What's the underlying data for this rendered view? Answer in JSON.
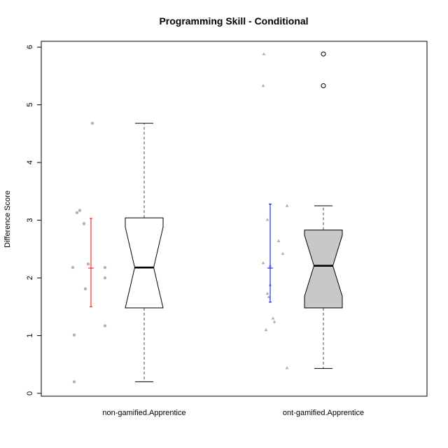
{
  "chart_data": {
    "type": "box",
    "title": "Programming Skill - Conditional",
    "xlabel": "",
    "ylabel": "Difference Score",
    "ylim": [
      -0.05,
      6.1
    ],
    "yticks": [
      0,
      1,
      2,
      3,
      4,
      5,
      6
    ],
    "categories": [
      "non-gamified.Apprentice",
      "ont-gamified.Apprentice"
    ],
    "boxes": [
      {
        "name": "non-gamified.Apprentice",
        "fill": "#ffffff",
        "whisker_low": 0.2,
        "q1": 1.48,
        "median": 2.18,
        "q3": 3.04,
        "whisker_high": 4.68,
        "notch_low": 1.48,
        "notch_high": 2.88,
        "outliers": []
      },
      {
        "name": "ont-gamified.Apprentice",
        "fill": "#c8c8c8",
        "whisker_low": 0.43,
        "q1": 1.48,
        "median": 2.21,
        "q3": 2.83,
        "whisker_high": 3.25,
        "notch_low": 1.68,
        "notch_high": 2.74,
        "outliers": [
          5.33,
          5.88
        ]
      }
    ],
    "mean_ci": [
      {
        "mean": 2.17,
        "low": 1.5,
        "high": 3.03,
        "color": "#ff0000"
      },
      {
        "mean": 2.17,
        "low": 1.58,
        "high": 3.28,
        "color": "#0000ff"
      }
    ],
    "jitter_points": [
      {
        "group": 0,
        "marker": "circle",
        "values": [
          0.2,
          1.01,
          1.17,
          1.81,
          2.0,
          2.18,
          2.18,
          2.24,
          2.94,
          3.13,
          3.17,
          4.68
        ]
      },
      {
        "group": 1,
        "marker": "triangle",
        "values": [
          0.44,
          1.1,
          1.24,
          1.3,
          1.67,
          1.73,
          1.88,
          2.21,
          2.26,
          2.42,
          2.64,
          3.01,
          3.25,
          5.33,
          5.88
        ]
      }
    ],
    "grid": false
  }
}
